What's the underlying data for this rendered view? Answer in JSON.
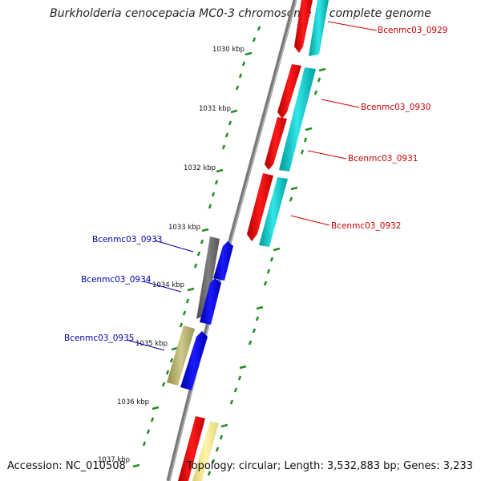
{
  "title": "Burkholderia cenocepacia MC0-3 chromosome 1, complete genome",
  "accession": "Accession: NC_010508",
  "topology": "Topology: circular; Length: 3,532,883 bp; Genes: 3,233",
  "ticks": [
    "1030 kbp",
    "1031 kbp",
    "1032 kbp",
    "1033 kbp",
    "1034 kbp",
    "1035 kbp",
    "1036 kbp",
    "1037 kbp"
  ],
  "genes_right": [
    "Bcenmc03_0929",
    "Bcenmc03_0930",
    "Bcenmc03_0931",
    "Bcenmc03_0932"
  ],
  "genes_left": [
    "Bcenmc03_0933",
    "Bcenmc03_0934",
    "Bcenmc03_0935"
  ],
  "colors": {
    "forward_cds": "#ff0000",
    "forward_cog": "#00cccc",
    "reverse_cds": "#0000ff",
    "reverse_gray": "#6b6b6b",
    "reverse_olive": "#bdb76b",
    "reverse_pale": "#f0e68c",
    "right_label": "#cc0000",
    "left_label": "#0000aa",
    "tick": "#228b22",
    "backbone": "#808080"
  }
}
